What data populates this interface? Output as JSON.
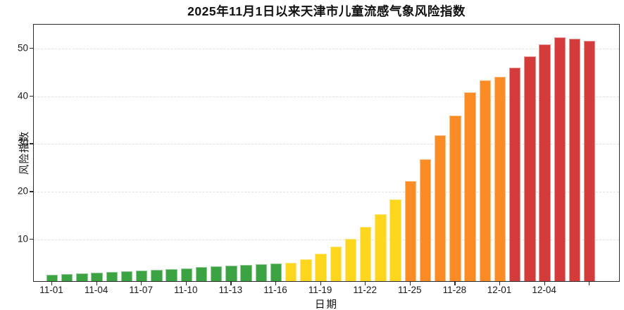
{
  "title": "2025年11月1日以来天津市儿童流感气象风险指数",
  "axes": {
    "xlabel": "日期",
    "ylabel": "风险指数",
    "y_tick_labels": [
      "10",
      "20",
      "30",
      "40",
      "50"
    ],
    "x_tick_labels": [
      "11-01",
      "11-04",
      "11-07",
      "11-10",
      "11-13",
      "11-16",
      "11-19",
      "11-22",
      "11-25",
      "11-28",
      "12-01",
      "12-04"
    ]
  },
  "colors": {
    "green_low": "#3CA342",
    "yellow_moderate": "#FFD61E",
    "orange_high": "#FB8C25",
    "red_very_high": "#D43B3B",
    "gridline": "#e2e2e2",
    "spine": "#2b2b2b"
  },
  "chart_data": {
    "type": "bar",
    "title": "2025年11月1日以来天津市儿童流感气象风险指数",
    "xlabel": "日期",
    "ylabel": "风险指数",
    "ylim": [
      1,
      55
    ],
    "yticks": [
      10,
      20,
      30,
      40,
      50
    ],
    "grid": true,
    "categories": [
      "11-01",
      "11-02",
      "11-03",
      "11-04",
      "11-05",
      "11-06",
      "11-07",
      "11-08",
      "11-09",
      "11-10",
      "11-11",
      "11-12",
      "11-13",
      "11-14",
      "11-15",
      "11-16",
      "11-17",
      "11-18",
      "11-19",
      "11-20",
      "11-21",
      "11-22",
      "11-23",
      "11-24",
      "11-25",
      "11-26",
      "11-27",
      "11-28",
      "11-29",
      "11-30",
      "12-01",
      "12-02",
      "12-03",
      "12-04",
      "12-05",
      "12-06",
      "12-07"
    ],
    "values": [
      2.4,
      2.5,
      2.6,
      2.7,
      2.9,
      3.0,
      3.2,
      3.3,
      3.5,
      3.7,
      3.9,
      4.1,
      4.3,
      4.4,
      4.6,
      4.7,
      4.9,
      5.6,
      6.8,
      8.2,
      9.9,
      12.3,
      15.0,
      18.1,
      21.9,
      26.6,
      31.5,
      35.7,
      40.5,
      43.0,
      43.8,
      45.7,
      48.0,
      50.6,
      52.1,
      51.8,
      51.3
    ],
    "bar_colors": [
      "#3CA342",
      "#3CA342",
      "#3CA342",
      "#3CA342",
      "#3CA342",
      "#3CA342",
      "#3CA342",
      "#3CA342",
      "#3CA342",
      "#3CA342",
      "#3CA342",
      "#3CA342",
      "#3CA342",
      "#3CA342",
      "#3CA342",
      "#3CA342",
      "#FFD61E",
      "#FFD61E",
      "#FFD61E",
      "#FFD61E",
      "#FFD61E",
      "#FFD61E",
      "#FFD61E",
      "#FFD61E",
      "#FB8C25",
      "#FB8C25",
      "#FB8C25",
      "#FB8C25",
      "#FB8C25",
      "#FB8C25",
      "#FB8C25",
      "#D43B3B",
      "#D43B3B",
      "#D43B3B",
      "#D43B3B",
      "#D43B3B",
      "#D43B3B"
    ],
    "x_tick_every": 3,
    "legend": null
  }
}
